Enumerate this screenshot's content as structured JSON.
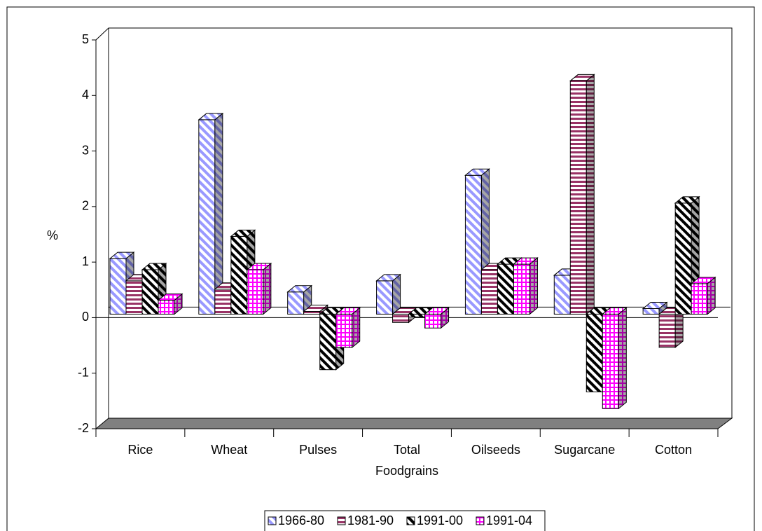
{
  "chart_data": {
    "type": "bar3d",
    "y_label": "%",
    "categories": [
      "Rice",
      "Wheat",
      "Pulses",
      "Total Foodgrains",
      "Oilseeds",
      "Sugarcane",
      "Cotton"
    ],
    "series": [
      {
        "name": "1966-80",
        "color": "#9999ff",
        "hatch": "diagonal",
        "values": [
          1.0,
          3.5,
          0.4,
          0.6,
          2.5,
          0.7,
          0.1
        ]
      },
      {
        "name": "1981-90",
        "color": "#993366",
        "hatch": "horizontal",
        "values": [
          0.6,
          0.45,
          0.05,
          -0.15,
          0.8,
          4.2,
          -0.6
        ]
      },
      {
        "name": "1991-00",
        "color": "#000000",
        "hatch": "diagonal",
        "values": [
          0.8,
          1.4,
          -1.0,
          -0.05,
          0.9,
          -1.4,
          2.0
        ]
      },
      {
        "name": "1991-04",
        "color": "#ff00ff",
        "hatch": "grid",
        "values": [
          0.25,
          0.8,
          -0.6,
          -0.25,
          0.9,
          -1.7,
          0.55
        ]
      }
    ],
    "ylim": [
      -2,
      5
    ],
    "yticks": [
      -2,
      -1,
      0,
      1,
      2,
      3,
      4,
      5
    ]
  }
}
